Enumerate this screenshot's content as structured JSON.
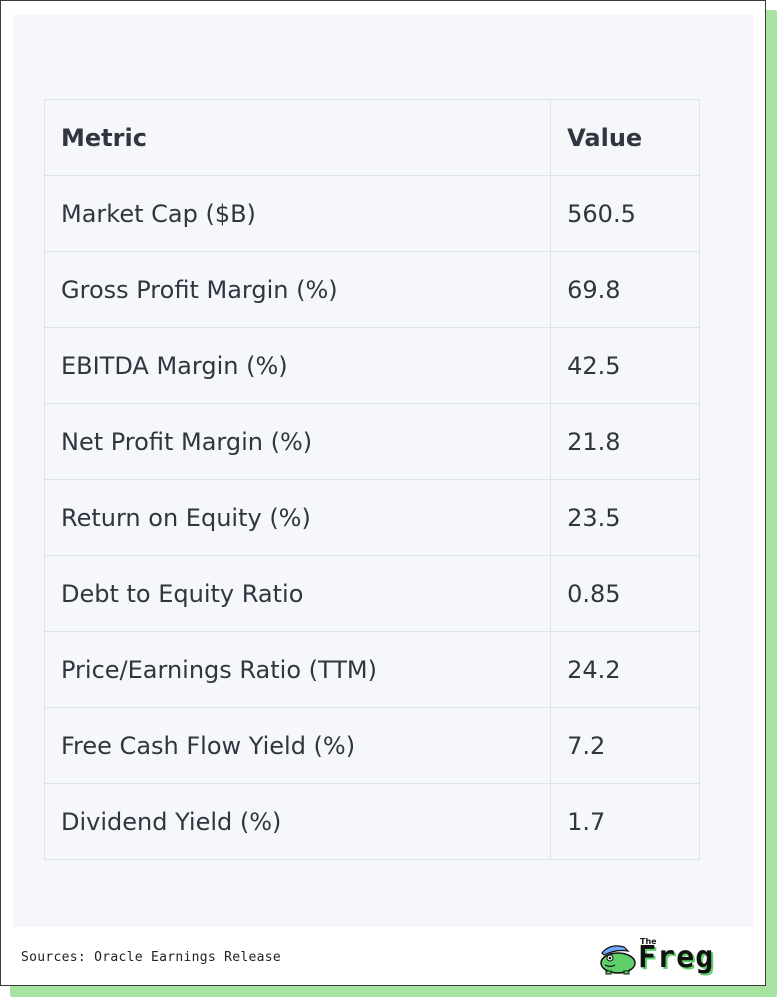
{
  "table": {
    "headers": [
      "Metric",
      "Value"
    ],
    "rows": [
      [
        "Market Cap ($B)",
        "560.5"
      ],
      [
        "Gross Profit Margin (%)",
        "69.8"
      ],
      [
        "EBITDA Margin (%)",
        "42.5"
      ],
      [
        "Net Profit Margin (%)",
        "21.8"
      ],
      [
        "Return on Equity (%)",
        "23.5"
      ],
      [
        "Debt to Equity Ratio",
        "0.85"
      ],
      [
        "Price/Earnings Ratio (TTM)",
        "24.2"
      ],
      [
        "Free Cash Flow Yield (%)",
        "7.2"
      ],
      [
        "Dividend Yield (%)",
        "1.7"
      ]
    ]
  },
  "footer": {
    "source": "Sources: Oracle Earnings Release"
  },
  "logo": {
    "small_text": "The",
    "word": "Freg",
    "icon": "frog-icon"
  },
  "colors": {
    "shadow": "#a6e3a1",
    "panel": "#f6f7fa",
    "grid": "#dfe3ea",
    "text": "#2f3640"
  }
}
